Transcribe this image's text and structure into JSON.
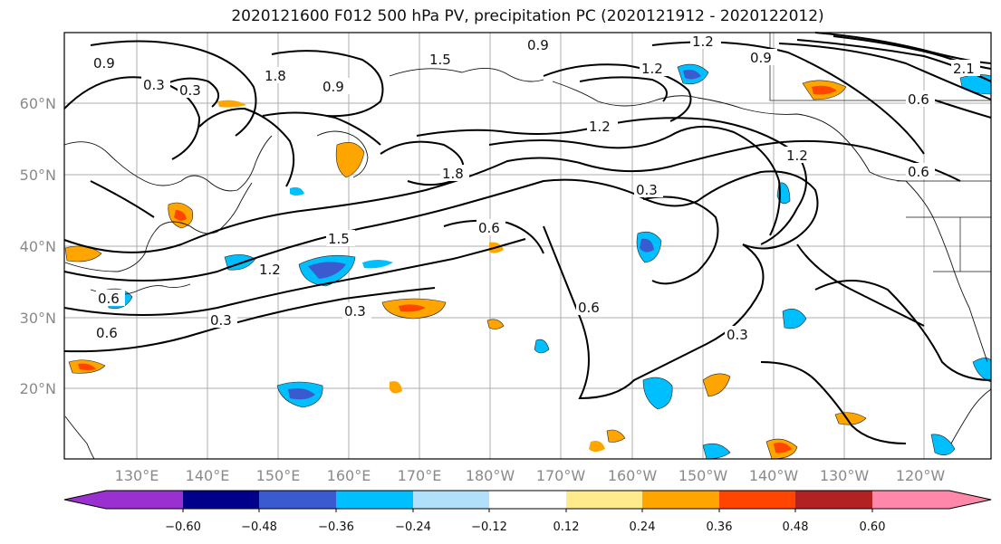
{
  "title": "2020121600 F012 500 hPa PV, precipitation PC (2020121912 - 2020122012)",
  "lat_labels": [
    "60°N",
    "50°N",
    "40°N",
    "30°N",
    "20°N"
  ],
  "lon_labels": [
    "130°E",
    "140°E",
    "150°E",
    "160°E",
    "170°E",
    "180°W",
    "170°W",
    "160°W",
    "150°W",
    "140°W",
    "130°W",
    "120°W"
  ],
  "contour_labels": [
    "0.9",
    "0.3",
    "1.5",
    "1.2",
    "0.9",
    "1.2",
    "0.9",
    "0.6",
    "0.3",
    "1.8",
    "1.5",
    "0.6",
    "1.2",
    "0.9",
    "0.3",
    "0.6",
    "0.3",
    "0.6",
    "1.2",
    "0.3",
    "0.3",
    "0.6",
    "1.2",
    "1.8",
    "2.1",
    "0.6"
  ],
  "colorbar": {
    "ticks": [
      "−0.60",
      "−0.48",
      "−0.36",
      "−0.24",
      "−0.12",
      "0.12",
      "0.24",
      "0.36",
      "0.48",
      "0.60"
    ],
    "colors": [
      "#9b30d0",
      "#00008b",
      "#3a5bd0",
      "#00bfff",
      "#b0e0fa",
      "#ffffff",
      "#ffeb8c",
      "#ffa500",
      "#ff4500",
      "#b22222",
      "#ff88aa"
    ]
  },
  "fill_colors": {
    "neg_light": "#00bfff",
    "neg_mid": "#3a5bd0",
    "pos_light": "#ffeb8c",
    "pos_mid": "#ffa500",
    "pos_high": "#ff4500"
  }
}
